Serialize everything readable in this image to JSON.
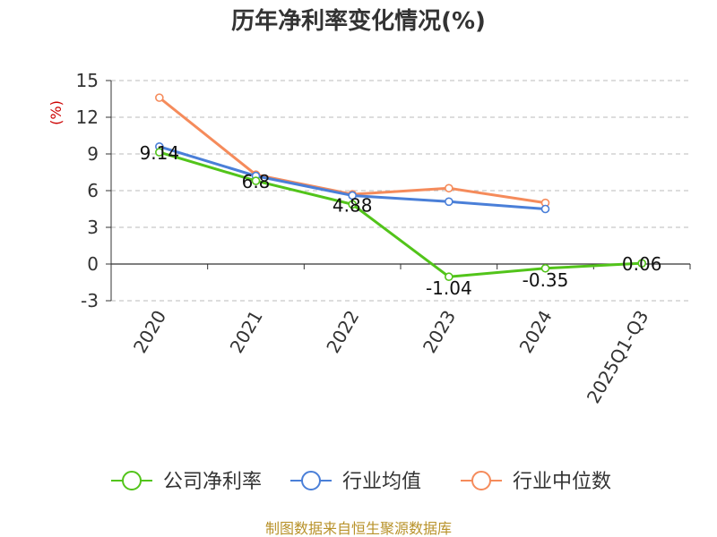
{
  "chart_data": {
    "type": "line",
    "title": "历年净利率变化情况(%)",
    "unit_label": "(%)",
    "categories": [
      "2020",
      "2021",
      "2022",
      "2023",
      "2024",
      "2025Q1-Q3"
    ],
    "ylim": [
      -3,
      15
    ],
    "yticks": [
      "15",
      "12",
      "9",
      "6",
      "3",
      "0",
      "-3"
    ],
    "grid": true,
    "legend_position": "bottom",
    "series": [
      {
        "name": "公司净利率",
        "color": "#52c41a",
        "values": [
          9.14,
          6.8,
          4.88,
          -1.04,
          -0.35,
          0.06
        ],
        "labels": [
          "9.14",
          "6.8",
          "4.88",
          "-1.04",
          "-0.35",
          "0.06"
        ]
      },
      {
        "name": "行业均值",
        "color": "#4a7fd8",
        "values": [
          9.6,
          7.2,
          5.6,
          5.1,
          4.5,
          null
        ]
      },
      {
        "name": "行业中位数",
        "color": "#f58b5b",
        "values": [
          13.6,
          7.3,
          5.7,
          6.2,
          5.0,
          null
        ]
      }
    ]
  },
  "source_text": "制图数据来自恒生聚源数据库",
  "colors": {
    "unit": "#cc0000",
    "source": "#b8922a",
    "grid": "#bbbbbb",
    "axis": "#333333"
  }
}
